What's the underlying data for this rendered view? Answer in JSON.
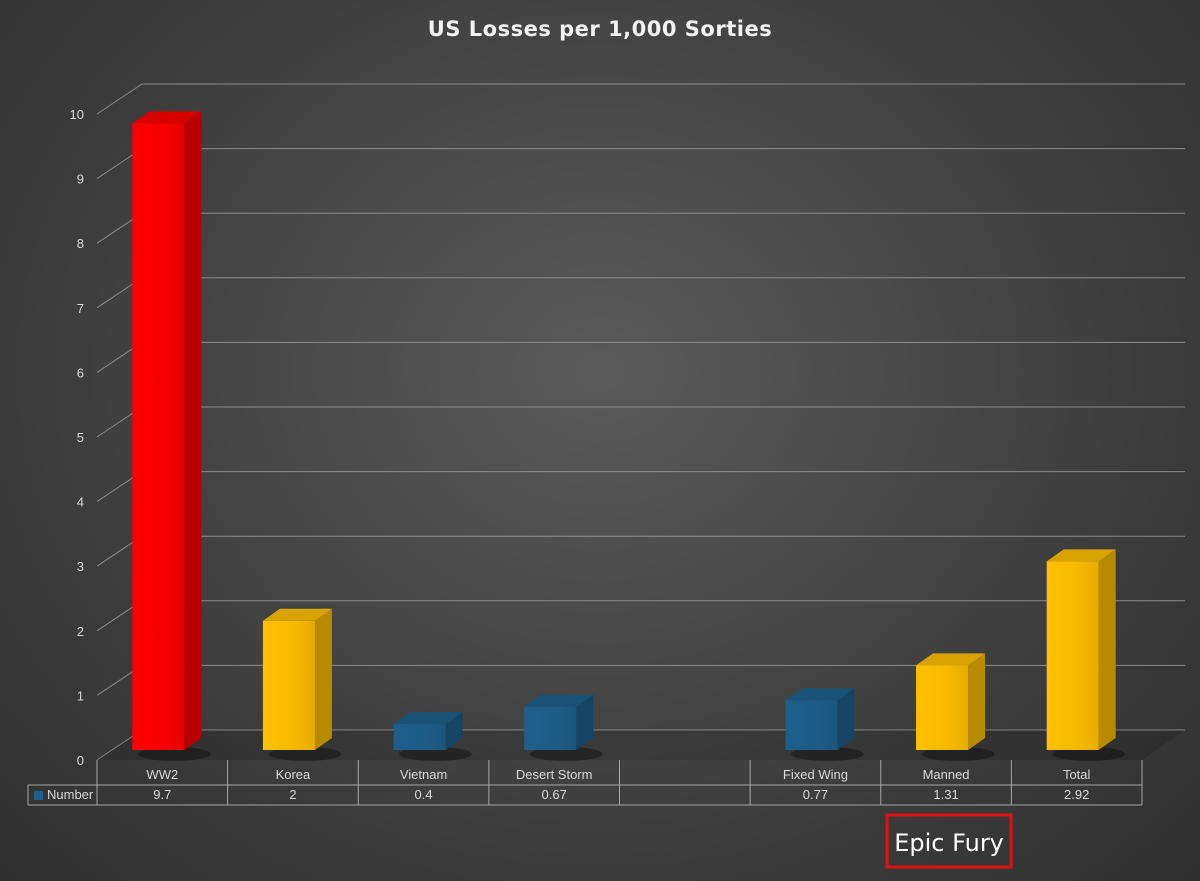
{
  "chart_data": {
    "type": "bar",
    "title": "US Losses per 1,000 Sorties",
    "xlabel": "",
    "ylabel": "",
    "ylim": [
      0,
      10
    ],
    "yticks": [
      "0",
      "1",
      "2",
      "3",
      "4",
      "5",
      "6",
      "7",
      "8",
      "9",
      "10"
    ],
    "grid": true,
    "style": "3d-column",
    "categories": [
      "WW2",
      "Korea",
      "Vietnam",
      "Desert Storm",
      "",
      "Fixed Wing",
      "Manned",
      "Total"
    ],
    "series": [
      {
        "name": "Number",
        "values": [
          9.7,
          2,
          0.4,
          0.67,
          null,
          0.77,
          1.31,
          2.92
        ],
        "value_labels": [
          "9.7",
          "2",
          "0.4",
          "0.67",
          "",
          "0.77",
          "1.31",
          "2.92"
        ],
        "bar_colors": [
          "#ff0000",
          "#ffc000",
          "#1f5f8b",
          "#1f5f8b",
          "",
          "#1f5f8b",
          "#ffc000",
          "#ffc000"
        ]
      }
    ],
    "legend": {
      "placement": "data-table-left",
      "label": "Number",
      "color": "#1f5f8b"
    },
    "data_table": true,
    "annotations": [
      {
        "text": "Epic Fury",
        "anchor": "Manned",
        "border_color": "#e01010"
      }
    ]
  }
}
